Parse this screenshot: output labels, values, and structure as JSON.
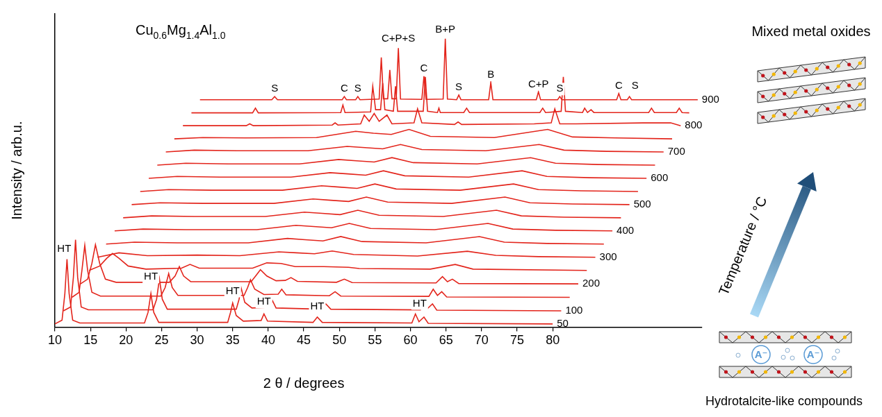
{
  "chart_data": {
    "type": "line",
    "title": "Cu0.6Mg1.4Al1.0",
    "x_label": "2 θ / degrees",
    "y_label": "Intensity / arb.u.",
    "xlim": [
      10,
      101
    ],
    "xticks": [
      10,
      15,
      20,
      25,
      30,
      35,
      40,
      45,
      50,
      55,
      60,
      65,
      70,
      75,
      80
    ],
    "ylim": [
      0,
      100
    ],
    "grid": false,
    "tick_labels": "x",
    "color": "#e3241b",
    "series": [
      {
        "name": "50",
        "x": [
          10,
          11,
          11.4,
          11.7,
          12,
          12.5,
          13.5,
          22.6,
          23.1,
          23.5,
          23.9,
          24.6,
          34.3,
          34.7,
          35,
          35.5,
          36.5,
          39,
          39.4,
          39.9,
          46.3,
          46.9,
          47.6,
          60.2,
          60.7,
          61.2,
          61.9,
          62.5,
          80
        ],
        "values": [
          1.0,
          2.2,
          10.7,
          21.7,
          10.7,
          2.2,
          1.3,
          1.3,
          4.7,
          10.7,
          4.7,
          1.5,
          1.5,
          4.7,
          7.7,
          3.7,
          1.9,
          2.1,
          4.2,
          1.9,
          1.5,
          3.2,
          1.5,
          1.3,
          4.2,
          1.7,
          3.2,
          1.2,
          1.0
        ]
      },
      {
        "name": "100",
        "x": [
          11.2,
          12.2,
          12.6,
          12.9,
          13.2,
          13.7,
          14.7,
          23.8,
          24.3,
          24.7,
          25.1,
          25.8,
          35.5,
          35.9,
          36.2,
          36.7,
          37.7,
          40.2,
          40.6,
          41.1,
          47.5,
          48.1,
          48.8,
          61.4,
          61.9,
          62.4,
          63.1,
          63.7,
          81.2
        ],
        "values": [
          5.2,
          6.4,
          15.9,
          27.9,
          15.9,
          6.4,
          5.5,
          5.5,
          8.9,
          15.4,
          8.9,
          5.7,
          5.7,
          8.9,
          12.4,
          7.9,
          6.1,
          6.3,
          8.4,
          6.1,
          5.7,
          7.4,
          5.7,
          5.5,
          8.4,
          5.9,
          7.4,
          5.4,
          5.2
        ]
      },
      {
        "x": [
          12.4,
          13.4,
          13.8,
          14.2,
          14.6,
          15.2,
          16.4,
          24.9,
          25.5,
          26.0,
          26.5,
          27.3,
          36.6,
          37.1,
          37.5,
          38.1,
          39.4,
          41.4,
          41.9,
          42.5,
          48.6,
          49.4,
          50.2,
          62.6,
          63.2,
          63.8,
          64.4,
          65.1,
          82.4
        ],
        "values": [
          9.5,
          11.1,
          18.1,
          26.1,
          18.1,
          11.1,
          9.9,
          9.9,
          12.6,
          17.1,
          12.6,
          10.1,
          10.1,
          12.6,
          15.1,
          12.1,
          10.4,
          10.5,
          12.1,
          10.3,
          10.0,
          11.3,
          9.9,
          9.8,
          12.1,
          10.1,
          11.3,
          9.6,
          9.5
        ]
      },
      {
        "name": "200",
        "x": [
          13.6,
          14.6,
          15.2,
          15.7,
          16.3,
          17.1,
          18.6,
          26.1,
          26.9,
          27.5,
          28.1,
          29.1,
          37.6,
          38.4,
          38.9,
          39.8,
          41.1,
          42.4,
          43.2,
          44.1,
          49.6,
          50.7,
          51.8,
          63.6,
          64.5,
          65.2,
          65.9,
          66.8,
          83.6
        ],
        "values": [
          13.8,
          15.3,
          20.3,
          26.3,
          20.3,
          15.3,
          14.3,
          14.3,
          16.3,
          19.3,
          16.3,
          14.5,
          14.5,
          16.8,
          18.3,
          16.3,
          14.8,
          14.9,
          15.8,
          14.6,
          14.3,
          15.3,
          14.2,
          14.1,
          16.1,
          14.5,
          15.3,
          13.9,
          13.8
        ]
      },
      {
        "x": [
          14.8,
          16.3,
          17.3,
          18.1,
          19.0,
          20.3,
          22.8,
          27.8,
          29.0,
          30.3,
          37.8,
          39.8,
          41.8,
          43.8,
          47.8,
          51.3,
          52.8,
          62.8,
          66.3,
          68.8,
          84.8
        ],
        "values": [
          18.1,
          19.5,
          22.0,
          23.5,
          22.0,
          19.5,
          18.5,
          18.8,
          20.0,
          18.8,
          18.8,
          20.5,
          20.3,
          19.3,
          19.3,
          19.1,
          18.7,
          18.5,
          20.0,
          18.5,
          18.1
        ]
      },
      {
        "name": "300",
        "x": [
          16.0,
          19.0,
          23.0,
          30.0,
          36.0,
          41.5,
          44.0,
          46.5,
          49.0,
          52.0,
          61.0,
          68.0,
          72.0,
          78.0,
          86.0
        ],
        "values": [
          22.3,
          23.7,
          22.8,
          23.0,
          22.8,
          24.0,
          23.7,
          23.4,
          24.3,
          23.2,
          22.7,
          24.2,
          22.9,
          22.5,
          22.3
        ]
      },
      {
        "x": [
          17.2,
          21.2,
          27.2,
          37.2,
          42.7,
          45.2,
          47.7,
          50.2,
          53.2,
          62.2,
          69.7,
          73.2,
          79.2,
          87.2
        ],
        "values": [
          26.5,
          27.1,
          26.9,
          26.9,
          28.3,
          27.9,
          27.5,
          28.9,
          27.3,
          26.9,
          28.9,
          27.1,
          26.7,
          26.5
        ]
      },
      {
        "name": "400",
        "x": [
          18.4,
          22.4,
          28.4,
          38.4,
          43.9,
          46.4,
          48.9,
          51.4,
          54.4,
          63.4,
          70.9,
          74.4,
          80.4,
          88.4
        ],
        "values": [
          30.7,
          31.3,
          31.1,
          31.1,
          32.5,
          32.1,
          31.7,
          33.1,
          31.5,
          31.1,
          33.1,
          31.3,
          30.9,
          30.7
        ]
      },
      {
        "x": [
          19.6,
          23.6,
          29.6,
          39.6,
          45.1,
          47.6,
          50.1,
          52.6,
          55.6,
          64.6,
          72.1,
          75.6,
          81.6,
          89.6
        ],
        "values": [
          34.9,
          35.5,
          35.3,
          35.3,
          36.7,
          36.3,
          35.9,
          37.3,
          35.7,
          35.3,
          37.3,
          35.5,
          35.1,
          34.9
        ]
      },
      {
        "name": "500",
        "x": [
          20.8,
          24.8,
          30.8,
          40.8,
          46.3,
          48.8,
          51.3,
          53.8,
          56.8,
          65.8,
          73.3,
          76.8,
          82.8,
          90.8
        ],
        "values": [
          39.1,
          39.7,
          39.5,
          39.5,
          40.9,
          40.5,
          40.1,
          41.5,
          39.9,
          39.5,
          41.5,
          39.7,
          39.3,
          39.1
        ]
      },
      {
        "x": [
          22,
          26,
          32,
          42,
          47.5,
          50,
          52.5,
          55,
          58,
          67,
          74.5,
          78,
          84,
          92
        ],
        "values": [
          43.3,
          43.9,
          43.7,
          43.7,
          45.1,
          44.7,
          44.3,
          45.7,
          44.1,
          43.7,
          45.7,
          43.9,
          43.5,
          43.3
        ]
      },
      {
        "name": "600",
        "x": [
          23.2,
          27.2,
          33.2,
          43.2,
          48.7,
          51.2,
          53.7,
          56.2,
          59.2,
          68.2,
          75.7,
          79.2,
          85.2,
          93.2
        ],
        "values": [
          47.5,
          48.1,
          47.9,
          47.9,
          49.3,
          48.9,
          48.5,
          49.9,
          48.3,
          47.9,
          49.9,
          48.1,
          47.7,
          47.5
        ]
      },
      {
        "x": [
          24.4,
          28.4,
          34.4,
          44.4,
          49.9,
          52.4,
          54.9,
          57.4,
          60.4,
          69.4,
          76.9,
          80.4,
          86.4,
          94.4
        ],
        "values": [
          51.7,
          52.3,
          52.1,
          52.1,
          53.5,
          53.1,
          52.7,
          54.1,
          52.5,
          52.1,
          54.1,
          52.3,
          51.9,
          51.7
        ]
      },
      {
        "name": "700",
        "x": [
          25.6,
          29.6,
          35.6,
          45.6,
          51.1,
          53.6,
          56.1,
          58.6,
          61.6,
          70.6,
          78.1,
          81.6,
          87.6,
          95.6
        ],
        "values": [
          55.9,
          56.5,
          56.3,
          56.3,
          57.7,
          57.3,
          56.9,
          58.3,
          56.7,
          56.3,
          58.3,
          56.5,
          56.1,
          55.9
        ]
      },
      {
        "x": [
          26.8,
          30.8,
          36.8,
          46.8,
          52.3,
          54.8,
          57.3,
          59.8,
          62.8,
          71.8,
          79.3,
          82.8,
          88.8,
          96.8
        ],
        "values": [
          60.1,
          60.5,
          60.4,
          60.5,
          62.5,
          61.9,
          61.5,
          63.1,
          60.9,
          60.5,
          63.1,
          60.7,
          60.4,
          60.1
        ]
      },
      {
        "name": "800",
        "x": [
          28.0,
          36.9,
          37.4,
          37.9,
          49.0,
          49.4,
          49.8,
          53.0,
          53.5,
          54.2,
          54.9,
          55.6,
          56.7,
          57.4,
          60.5,
          61.0,
          61.6,
          66.2,
          66.7,
          67.2,
          77.4,
          79.8,
          80.3,
          81.0,
          83.3,
          92.7,
          96.6,
          98.0
        ],
        "values": [
          64.3,
          64.3,
          64.9,
          64.3,
          64.5,
          65.2,
          64.5,
          64.9,
          67.7,
          65.7,
          68.2,
          65.7,
          67.7,
          64.9,
          65.2,
          69.7,
          65.2,
          64.7,
          65.5,
          64.7,
          64.9,
          65.2,
          69.7,
          64.9,
          64.9,
          65.2,
          65.2,
          64.3
        ]
      },
      {
        "x": [
          29.2,
          37.8,
          38.2,
          38.6,
          50.2,
          50.5,
          50.8,
          54.4,
          54.7,
          55.1,
          55.8,
          56.1,
          56.4,
          57.6,
          57.9,
          58.2,
          61.8,
          62.1,
          62.4,
          63.8,
          64.0,
          64.2,
          67.5,
          67.9,
          68.3,
          78.2,
          78.6,
          79.0,
          81.2,
          81.5,
          81.8,
          84.2,
          84.5,
          84.9,
          85.4,
          85.8,
          93.5,
          93.9,
          94.3,
          97.4,
          97.8,
          98.2,
          99.2
        ],
        "values": [
          68.4,
          68.4,
          69.9,
          68.4,
          68.5,
          70.9,
          68.5,
          68.7,
          76.9,
          69.4,
          69.4,
          77.9,
          69.4,
          68.9,
          76.9,
          68.9,
          68.9,
          79.9,
          68.9,
          68.5,
          69.9,
          68.5,
          68.5,
          69.9,
          68.5,
          68.5,
          69.9,
          68.5,
          68.9,
          79.9,
          68.9,
          68.5,
          69.9,
          68.5,
          69.4,
          68.5,
          68.5,
          69.9,
          68.5,
          68.5,
          69.9,
          68.5,
          68.4
        ]
      },
      {
        "name": "900",
        "x": [
          30.4,
          40.5,
          40.9,
          41.3,
          50.4,
          50.7,
          51.0,
          52.3,
          52.6,
          52.9,
          55.6,
          55.9,
          56.2,
          56.8,
          57.1,
          57.4,
          58.0,
          58.3,
          58.6,
          61.6,
          61.9,
          62.2,
          64.6,
          64.9,
          65.2,
          66.5,
          66.8,
          67.1,
          71.0,
          71.3,
          71.6,
          77.7,
          78.0,
          78.3,
          80.7,
          81.0,
          81.3,
          89.0,
          89.3,
          89.6,
          90.5,
          90.8,
          91.1,
          100.4
        ],
        "values": [
          72.6,
          72.6,
          73.6,
          72.6,
          72.6,
          73.6,
          72.6,
          72.6,
          73.6,
          72.6,
          72.8,
          86.1,
          72.9,
          72.9,
          82.1,
          72.9,
          72.9,
          89.1,
          72.8,
          72.7,
          80.1,
          72.7,
          72.8,
          92.1,
          72.8,
          72.6,
          74.1,
          72.6,
          72.6,
          78.1,
          72.6,
          72.6,
          75.1,
          72.6,
          72.6,
          73.6,
          72.6,
          72.6,
          74.6,
          72.6,
          72.6,
          73.6,
          72.6,
          72.6
        ]
      }
    ],
    "annotations": [
      {
        "text": "HT",
        "x": 11.3,
        "y": 25
      },
      {
        "text": "HT",
        "x": 23.5,
        "y": 16
      },
      {
        "text": "HT",
        "x": 35.0,
        "y": 11.5
      },
      {
        "text": "HT",
        "x": 39.4,
        "y": 8
      },
      {
        "text": "HT",
        "x": 46.9,
        "y": 6.5
      },
      {
        "text": "HT",
        "x": 61.3,
        "y": 7.5
      },
      {
        "text": "S",
        "x": 40.9,
        "y": 76
      },
      {
        "text": "C",
        "x": 50.7,
        "y": 76
      },
      {
        "text": "S",
        "x": 52.6,
        "y": 76
      },
      {
        "text": "C+P+S",
        "x": 58.3,
        "y": 92
      },
      {
        "text": "C",
        "x": 61.9,
        "y": 82.5
      },
      {
        "text": "B+P",
        "x": 64.9,
        "y": 95
      },
      {
        "text": "S",
        "x": 66.8,
        "y": 76.5
      },
      {
        "text": "B",
        "x": 71.3,
        "y": 80.5
      },
      {
        "text": "C+P",
        "x": 78.0,
        "y": 77.5
      },
      {
        "text": "S",
        "x": 81.0,
        "y": 76
      },
      {
        "text": "C",
        "x": 89.3,
        "y": 77
      },
      {
        "text": "S",
        "x": 91.6,
        "y": 77
      }
    ]
  },
  "diagram": {
    "top_label": "Mixed metal oxides",
    "arrow_label": "Temperature / °C",
    "bottom_label": "Hydrotalcite-like compounds",
    "anion_label": "A⁻"
  }
}
